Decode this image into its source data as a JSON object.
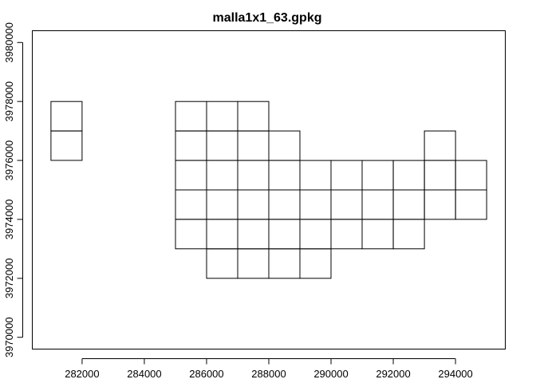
{
  "chart_data": {
    "type": "map-grid",
    "title": "malla1x1_63.gpkg",
    "xlabel": "",
    "ylabel": "",
    "xlim": [
      280400,
      295600
    ],
    "ylim": [
      3969600,
      3980400
    ],
    "x_ticks": [
      282000,
      284000,
      286000,
      288000,
      290000,
      292000,
      294000
    ],
    "x_tick_labels": [
      "282000",
      "284000",
      "286000",
      "288000",
      "290000",
      "292000",
      "294000"
    ],
    "y_ticks": [
      3970000,
      3972000,
      3974000,
      3976000,
      3978000,
      3980000
    ],
    "y_tick_labels": [
      "3970000",
      "3972000",
      "3974000",
      "3976000",
      "3978000",
      "3980000"
    ],
    "cell_size": 1000,
    "cells": [
      [
        281000,
        3977000
      ],
      [
        281000,
        3976000
      ],
      [
        285000,
        3977000
      ],
      [
        286000,
        3977000
      ],
      [
        287000,
        3977000
      ],
      [
        285000,
        3976000
      ],
      [
        286000,
        3976000
      ],
      [
        287000,
        3976000
      ],
      [
        288000,
        3976000
      ],
      [
        293000,
        3976000
      ],
      [
        285000,
        3975000
      ],
      [
        286000,
        3975000
      ],
      [
        287000,
        3975000
      ],
      [
        288000,
        3975000
      ],
      [
        289000,
        3975000
      ],
      [
        290000,
        3975000
      ],
      [
        291000,
        3975000
      ],
      [
        292000,
        3975000
      ],
      [
        293000,
        3975000
      ],
      [
        294000,
        3975000
      ],
      [
        285000,
        3974000
      ],
      [
        286000,
        3974000
      ],
      [
        287000,
        3974000
      ],
      [
        288000,
        3974000
      ],
      [
        289000,
        3974000
      ],
      [
        290000,
        3974000
      ],
      [
        291000,
        3974000
      ],
      [
        292000,
        3974000
      ],
      [
        293000,
        3974000
      ],
      [
        294000,
        3974000
      ],
      [
        285000,
        3973000
      ],
      [
        286000,
        3973000
      ],
      [
        287000,
        3973000
      ],
      [
        288000,
        3973000
      ],
      [
        289000,
        3973000
      ],
      [
        290000,
        3973000
      ],
      [
        291000,
        3973000
      ],
      [
        292000,
        3973000
      ],
      [
        286000,
        3972000
      ],
      [
        287000,
        3972000
      ],
      [
        288000,
        3972000
      ],
      [
        289000,
        3972000
      ]
    ]
  }
}
